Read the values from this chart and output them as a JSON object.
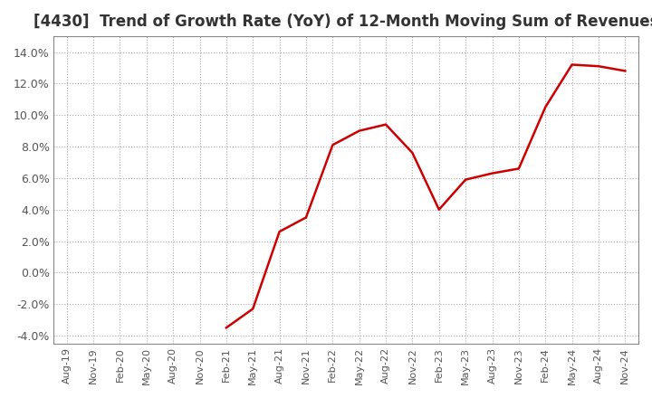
{
  "title": "[4430]  Trend of Growth Rate (YoY) of 12-Month Moving Sum of Revenues",
  "title_fontsize": 12,
  "line_color": "#cc0000",
  "background_color": "#ffffff",
  "grid_color": "#aaaaaa",
  "ylim": [
    -4.5,
    15.0
  ],
  "yticks": [
    -4.0,
    -2.0,
    0.0,
    2.0,
    4.0,
    6.0,
    8.0,
    10.0,
    12.0,
    14.0
  ],
  "x_labels": [
    "Aug-19",
    "Nov-19",
    "Feb-20",
    "May-20",
    "Aug-20",
    "Nov-20",
    "Feb-21",
    "May-21",
    "Aug-21",
    "Nov-21",
    "Feb-22",
    "May-22",
    "Aug-22",
    "Nov-22",
    "Feb-23",
    "May-23",
    "Aug-23",
    "Nov-23",
    "Feb-24",
    "May-24",
    "Aug-24",
    "Nov-24"
  ],
  "data_x": [
    6,
    7,
    8,
    9,
    10,
    11,
    12,
    13,
    14,
    15,
    16,
    17,
    18,
    19,
    20,
    21
  ],
  "data_y": [
    -3.5,
    -2.3,
    2.6,
    3.5,
    8.1,
    9.0,
    9.4,
    7.6,
    4.0,
    5.9,
    6.3,
    6.6,
    10.5,
    13.2,
    13.1,
    12.8
  ]
}
